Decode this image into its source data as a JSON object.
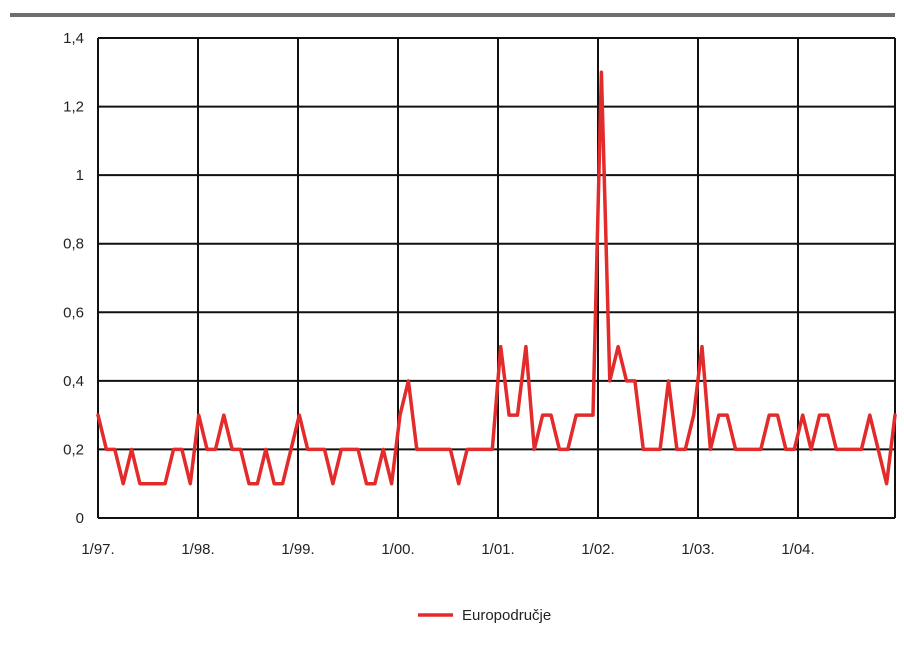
{
  "chart_data": {
    "type": "line",
    "title": "",
    "xlabel": "",
    "ylabel": "",
    "x_tick_labels": [
      "1/97.",
      "1/98.",
      "1/99.",
      "1/00.",
      "1/01.",
      "1/02.",
      "1/03.",
      "1/04."
    ],
    "y_tick_labels": [
      "0",
      "0,2",
      "0,4",
      "0,6",
      "0,8",
      "1",
      "1,2",
      "1,4"
    ],
    "ylim": [
      0,
      1.4
    ],
    "grid": true,
    "legend_position": "bottom-center",
    "line_color": "#e32b2b",
    "series": [
      {
        "name": "Europodručje",
        "values": [
          0.3,
          0.2,
          0.2,
          0.1,
          0.2,
          0.1,
          0.1,
          0.1,
          0.1,
          0.2,
          0.2,
          0.1,
          0.3,
          0.2,
          0.2,
          0.3,
          0.2,
          0.2,
          0.1,
          0.1,
          0.2,
          0.1,
          0.1,
          0.2,
          0.3,
          0.2,
          0.2,
          0.2,
          0.1,
          0.2,
          0.2,
          0.2,
          0.1,
          0.1,
          0.2,
          0.1,
          0.3,
          0.4,
          0.2,
          0.2,
          0.2,
          0.2,
          0.2,
          0.1,
          0.2,
          0.2,
          0.2,
          0.2,
          0.5,
          0.3,
          0.3,
          0.5,
          0.2,
          0.3,
          0.3,
          0.2,
          0.2,
          0.3,
          0.3,
          0.3,
          1.3,
          0.4,
          0.5,
          0.4,
          0.4,
          0.2,
          0.2,
          0.2,
          0.4,
          0.2,
          0.2,
          0.3,
          0.5,
          0.2,
          0.3,
          0.3,
          0.2,
          0.2,
          0.2,
          0.2,
          0.3,
          0.3,
          0.2,
          0.2,
          0.3,
          0.2,
          0.3,
          0.3,
          0.2,
          0.2,
          0.2,
          0.2,
          0.3,
          0.2,
          0.1,
          0.3
        ]
      }
    ]
  }
}
